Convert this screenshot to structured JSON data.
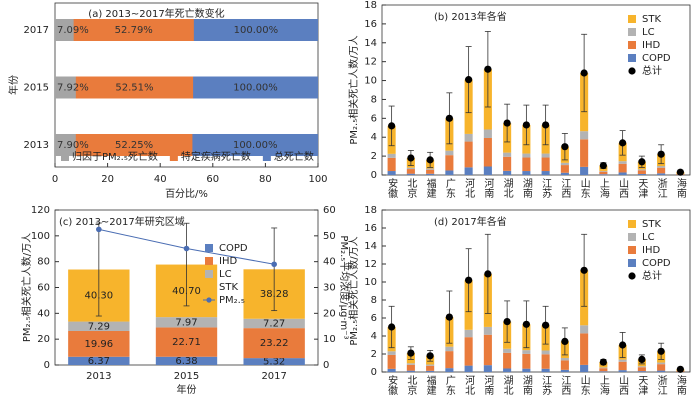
{
  "chart_data": [
    {
      "type": "bar",
      "orientation": "horizontal",
      "overlap": true,
      "title": "(a) 2013~2017年死亡数变化",
      "xlabel": "百分比/%",
      "ylabel": "年份",
      "categories": [
        "2017",
        "2015",
        "2013"
      ],
      "series": [
        {
          "name": "归因于PM₂.₅死亡数",
          "color": "#a5a5a5",
          "values": [
            7.09,
            7.92,
            7.9
          ],
          "value_labels": [
            "7.09%",
            "7.92%",
            "7.90%"
          ]
        },
        {
          "name": "特定疾病死亡数",
          "color": "#e97b3c",
          "values": [
            52.79,
            52.51,
            52.25
          ],
          "value_labels": [
            "52.79%",
            "52.51%",
            "52.25%"
          ]
        },
        {
          "name": "总死亡数",
          "color": "#5b7fc0",
          "values": [
            100,
            100,
            100
          ],
          "value_labels": [
            "100.00%",
            "100.00%",
            "100.00%"
          ]
        }
      ],
      "xlim": [
        0,
        100
      ],
      "xticks": [
        0,
        20,
        40,
        60,
        80,
        100
      ],
      "legend": "lower center"
    },
    {
      "type": "bar",
      "stacked": true,
      "title": "(b) 2013年各省",
      "ylabel": "PM₂.₅相关死亡人数/万人",
      "categories": [
        "安徽",
        "北京",
        "福建",
        "广东",
        "河北",
        "河南",
        "湖北",
        "湖南",
        "江苏",
        "江西",
        "山东",
        "上海",
        "山西",
        "天津",
        "浙江",
        "海南"
      ],
      "series": [
        {
          "name": "COPD",
          "color": "#5b7fc0",
          "values": [
            0.42,
            0.14,
            0.13,
            0.48,
            0.81,
            0.9,
            0.44,
            0.42,
            0.42,
            0.24,
            0.86,
            0.08,
            0.27,
            0.11,
            0.18,
            0.02
          ]
        },
        {
          "name": "IHD",
          "color": "#e97b3c",
          "values": [
            1.4,
            0.49,
            0.43,
            1.62,
            2.73,
            3.02,
            1.49,
            1.43,
            1.43,
            0.81,
            2.92,
            0.27,
            0.92,
            0.38,
            0.59,
            0.08
          ]
        },
        {
          "name": "LC",
          "color": "#b3b3b3",
          "values": [
            0.42,
            0.14,
            0.13,
            0.48,
            0.81,
            0.9,
            0.44,
            0.42,
            0.42,
            0.24,
            0.86,
            0.08,
            0.27,
            0.11,
            0.18,
            0.02
          ]
        },
        {
          "name": "STK",
          "color": "#f7b42c",
          "values": [
            2.96,
            1.03,
            0.91,
            3.42,
            5.75,
            6.38,
            3.13,
            3.03,
            3.03,
            1.71,
            6.16,
            0.57,
            1.94,
            0.8,
            1.25,
            0.18
          ]
        }
      ],
      "totals": {
        "name": "总计",
        "color": "#000000",
        "values": [
          5.2,
          1.8,
          1.6,
          6.0,
          10.1,
          11.2,
          5.5,
          5.3,
          5.3,
          3.0,
          10.8,
          1.0,
          3.4,
          1.4,
          2.2,
          0.3
        ],
        "errors": [
          2.1,
          0.8,
          0.8,
          2.7,
          3.5,
          4.0,
          2.0,
          2.1,
          2.1,
          1.4,
          4.1,
          0.3,
          1.3,
          0.6,
          1.0,
          0.1
        ]
      },
      "ylim": [
        0,
        18
      ],
      "yticks": [
        0,
        2,
        4,
        6,
        8,
        10,
        12,
        14,
        16,
        18
      ],
      "legend": "upper right",
      "legend_reversed": true
    },
    {
      "type": "bar",
      "stacked": true,
      "title": "(c) 2013~2017年研究区域",
      "xlabel": "年份",
      "ylabel": "PM₂.₅相关死亡人数/万人",
      "y2label": "PM₂.₅平均浓度/μg·m⁻³",
      "categories": [
        "2013",
        "2015",
        "2017"
      ],
      "series": [
        {
          "name": "COPD",
          "color": "#5b7fc0",
          "values": [
            6.37,
            6.38,
            5.32
          ],
          "value_labels": [
            "6.37",
            "6.38",
            "5.32"
          ]
        },
        {
          "name": "IHD",
          "color": "#e97b3c",
          "values": [
            19.96,
            22.71,
            23.22
          ],
          "value_labels": [
            "19.96",
            "22.71",
            "23.22"
          ]
        },
        {
          "name": "LC",
          "color": "#b3b3b3",
          "values": [
            7.29,
            7.97,
            7.27
          ],
          "value_labels": [
            "7.29",
            "7.97",
            "7.27"
          ]
        },
        {
          "name": "STK",
          "color": "#f7b42c",
          "values": [
            40.3,
            40.7,
            38.28
          ],
          "value_labels": [
            "40.30",
            "40.70",
            "38.28"
          ]
        },
        {
          "name": "PM₂.₅",
          "type": "line",
          "axis": "y2",
          "color": "#4a6db3",
          "values": [
            52.5,
            45.1,
            39.0
          ]
        }
      ],
      "errors": [
        36,
        32,
        32
      ],
      "ylim": [
        0,
        120
      ],
      "yticks": [
        0,
        20,
        40,
        60,
        80,
        100,
        120
      ],
      "y2lim": [
        0,
        60
      ],
      "y2ticks": [
        0,
        10,
        20,
        30,
        40,
        50,
        60
      ],
      "legend": "center right"
    },
    {
      "type": "bar",
      "stacked": true,
      "title": "(d) 2017年各省",
      "ylabel": "PM₂.₅相关死亡人数/万人",
      "categories": [
        "安徽",
        "北京",
        "福建",
        "广东",
        "河北",
        "河南",
        "湖北",
        "湖南",
        "江苏",
        "江西",
        "山东",
        "上海",
        "山西",
        "天津",
        "浙江",
        "海南"
      ],
      "series": [
        {
          "name": "COPD",
          "color": "#5b7fc0",
          "values": [
            0.35,
            0.15,
            0.13,
            0.43,
            0.71,
            0.76,
            0.39,
            0.37,
            0.36,
            0.24,
            0.79,
            0.08,
            0.21,
            0.1,
            0.16,
            0.02
          ]
        },
        {
          "name": "IHD",
          "color": "#e97b3c",
          "values": [
            1.55,
            0.65,
            0.56,
            1.89,
            3.16,
            3.38,
            1.74,
            1.64,
            1.61,
            1.05,
            3.5,
            0.34,
            0.93,
            0.43,
            0.71,
            0.09
          ]
        },
        {
          "name": "LC",
          "color": "#b3b3b3",
          "values": [
            0.4,
            0.17,
            0.14,
            0.49,
            0.82,
            0.87,
            0.45,
            0.42,
            0.42,
            0.27,
            0.9,
            0.09,
            0.24,
            0.11,
            0.18,
            0.02
          ]
        },
        {
          "name": "STK",
          "color": "#f7b42c",
          "values": [
            2.7,
            1.13,
            0.97,
            3.29,
            5.51,
            5.89,
            3.02,
            2.87,
            2.81,
            1.84,
            6.11,
            0.59,
            1.62,
            0.76,
            1.25,
            0.17
          ]
        }
      ],
      "totals": {
        "name": "总计",
        "color": "#000000",
        "values": [
          5.0,
          2.1,
          1.8,
          6.1,
          10.2,
          10.9,
          5.6,
          5.3,
          5.2,
          3.4,
          11.3,
          1.1,
          3.0,
          1.4,
          2.3,
          0.3
        ],
        "errors": [
          2.3,
          0.7,
          0.6,
          2.9,
          3.5,
          4.4,
          2.3,
          2.6,
          2.1,
          1.5,
          4.0,
          0.3,
          1.4,
          0.5,
          0.9,
          0.1
        ]
      },
      "ylim": [
        0,
        18
      ],
      "yticks": [
        0,
        2,
        4,
        6,
        8,
        10,
        12,
        14,
        16,
        18
      ],
      "legend": "upper right",
      "legend_reversed": true
    }
  ]
}
